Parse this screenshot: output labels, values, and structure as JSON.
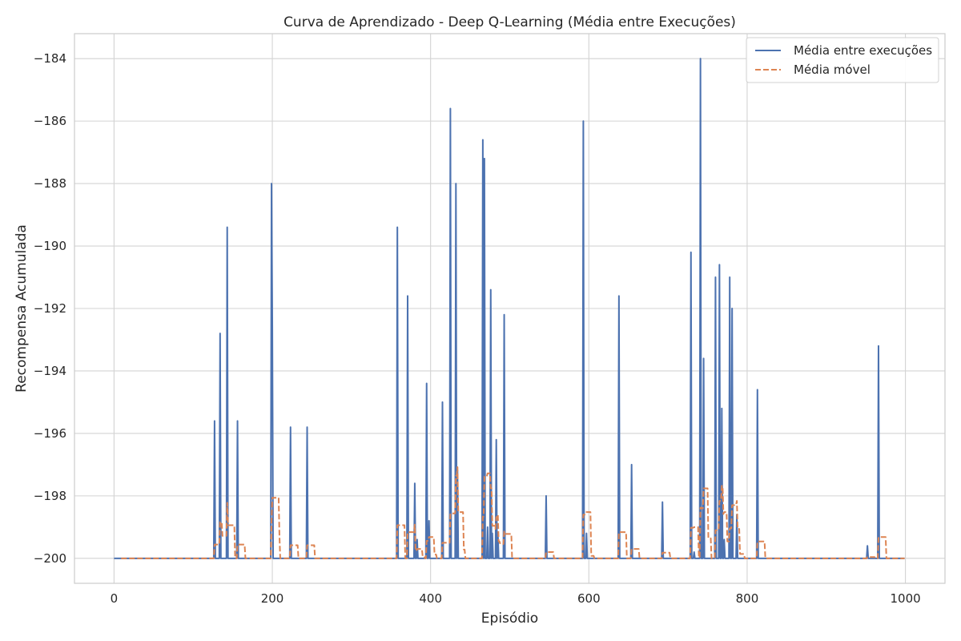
{
  "chart_data": {
    "type": "line",
    "title": "Curva de Aprendizado - Deep Q-Learning (Média entre Execuções)",
    "xlabel": "Episódio",
    "ylabel": "Recompensa Acumulada",
    "xlim": [
      -50,
      1050
    ],
    "ylim": [
      -200.8,
      -183.2
    ],
    "xticks": [
      0,
      200,
      400,
      600,
      800,
      1000
    ],
    "yticks": [
      -200,
      -198,
      -196,
      -194,
      -192,
      -190,
      -188,
      -186,
      -184
    ],
    "grid": true,
    "legend_position": "top-right",
    "baseline": -200,
    "series": [
      {
        "name": "Média entre execuções",
        "color": "#4c72b0",
        "style": "solid",
        "default": -200,
        "spikes": [
          [
            127,
            -195.6
          ],
          [
            134,
            -192.8
          ],
          [
            143,
            -189.4
          ],
          [
            156,
            -195.6
          ],
          [
            199,
            -188.0
          ],
          [
            200,
            -192.6
          ],
          [
            223,
            -195.8
          ],
          [
            244,
            -195.8
          ],
          [
            358,
            -189.4
          ],
          [
            371,
            -191.6
          ],
          [
            380,
            -197.6
          ],
          [
            383,
            -199.4
          ],
          [
            395,
            -194.4
          ],
          [
            398,
            -198.8
          ],
          [
            415,
            -195.0
          ],
          [
            425,
            -185.6
          ],
          [
            432,
            -188.0
          ],
          [
            434,
            -197.2
          ],
          [
            466,
            -186.6
          ],
          [
            468,
            -187.2
          ],
          [
            472,
            -199.0
          ],
          [
            476,
            -191.4
          ],
          [
            478,
            -199.2
          ],
          [
            483,
            -196.2
          ],
          [
            485,
            -199.2
          ],
          [
            493,
            -192.2
          ],
          [
            546,
            -198.0
          ],
          [
            593,
            -186.0
          ],
          [
            597,
            -199.2
          ],
          [
            638,
            -191.6
          ],
          [
            654,
            -197.0
          ],
          [
            693,
            -198.2
          ],
          [
            729,
            -190.2
          ],
          [
            733,
            -199.8
          ],
          [
            741,
            -184.0
          ],
          [
            745,
            -193.6
          ],
          [
            760,
            -191.0
          ],
          [
            765,
            -190.6
          ],
          [
            768,
            -195.2
          ],
          [
            771,
            -199.4
          ],
          [
            778,
            -191.0
          ],
          [
            781,
            -192.0
          ],
          [
            787,
            -198.6
          ],
          [
            813,
            -194.6
          ],
          [
            952,
            -199.6
          ],
          [
            966,
            -193.2
          ]
        ]
      },
      {
        "name": "Média móvel",
        "color": "#dd8452",
        "style": "dashed",
        "window": 10,
        "start": 9
      }
    ]
  }
}
